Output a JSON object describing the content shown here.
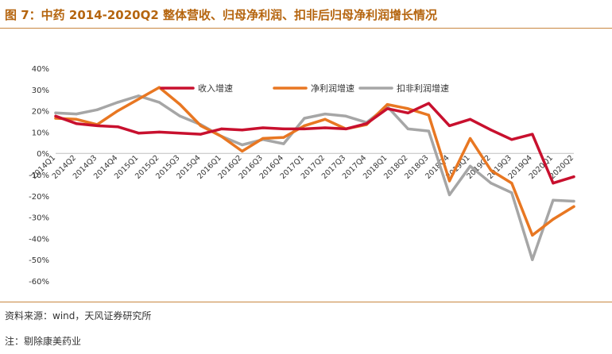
{
  "figure": {
    "title": "图 7：中药 2014-2020Q2 整体营收、归母净利润、扣非后归母净利润增长情况",
    "source": "资料来源：wind，天风证券研究所",
    "note": "注：剔除康美药业"
  },
  "chart_data": {
    "type": "line",
    "title": "",
    "xlabel": "",
    "ylabel": "",
    "ylim": [
      -60,
      40
    ],
    "y_ticks": [
      40,
      30,
      20,
      10,
      0,
      -10,
      -20,
      -30,
      -40,
      -50,
      -60
    ],
    "y_tick_labels": [
      "40%",
      "30%",
      "20%",
      "10%",
      "0%",
      "-10%",
      "-20%",
      "-30%",
      "-40%",
      "-50%",
      "-60%"
    ],
    "grid": false,
    "legend_position": "top-center",
    "categories": [
      "2014Q1",
      "2014Q2",
      "2014Q3",
      "2014Q4",
      "2015Q1",
      "2015Q2",
      "2015Q3",
      "2015Q4",
      "2016Q1",
      "2016Q2",
      "2016Q3",
      "2016Q4",
      "2017Q1",
      "2017Q2",
      "2017Q3",
      "2017Q4",
      "2018Q1",
      "2018Q2",
      "2018Q3",
      "2018Q4",
      "2019Q1",
      "2019Q2",
      "2019Q3",
      "2019Q4",
      "2020Q1",
      "2020Q2"
    ],
    "series": [
      {
        "name": "收入增速",
        "color": "#c8102e",
        "values": [
          17.5,
          14,
          13,
          12.5,
          9.5,
          10,
          9.5,
          9,
          11.5,
          11,
          12,
          11.5,
          11.5,
          12,
          11.5,
          14,
          21,
          19,
          23.5,
          13,
          16,
          11,
          6.5,
          9,
          -14,
          -11
        ]
      },
      {
        "name": "净利润增速",
        "color": "#e87722",
        "values": [
          16.5,
          16,
          13.5,
          20,
          25.5,
          31,
          23,
          13,
          8,
          1,
          7,
          7.5,
          13,
          16,
          11.5,
          13.5,
          23,
          21,
          18,
          -13,
          7,
          -8,
          -14,
          -38.5,
          -31,
          -25
        ]
      },
      {
        "name": "扣非利润增速",
        "color": "#a6a6a6",
        "values": [
          19,
          18.5,
          20.5,
          24,
          27,
          24,
          17.5,
          13.5,
          8,
          4,
          6.5,
          4.5,
          16.5,
          18.5,
          17.5,
          14.5,
          22,
          11.5,
          10.5,
          -19.5,
          -6,
          -14,
          -18.5,
          -50,
          -22,
          -22.5
        ]
      }
    ]
  }
}
